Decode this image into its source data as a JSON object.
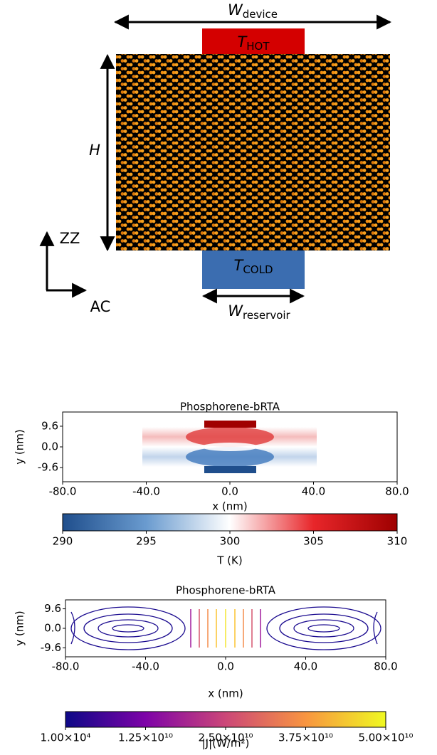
{
  "diagram": {
    "width_label": {
      "main": "W",
      "sub": "device"
    },
    "hot_label": {
      "main": "T",
      "sub": "HOT"
    },
    "cold_label": {
      "main": "T",
      "sub": "COLD"
    },
    "height_label": "H",
    "zz_label": "ZZ",
    "ac_label": "AC",
    "reservoir_label": {
      "main": "W",
      "sub": "reservoir"
    }
  },
  "chart_data": [
    {
      "type": "heatmap",
      "title": "Phosphorene-bRTA",
      "xlabel": "x (nm)",
      "ylabel": "y (nm)",
      "xlim": [
        -80,
        80
      ],
      "ylim": [
        -16.2,
        16.2
      ],
      "xticks": [
        {
          "value": -80,
          "label": "-80.0"
        },
        {
          "value": -40,
          "label": "-40.0"
        },
        {
          "value": 0,
          "label": "0.0"
        },
        {
          "value": 40,
          "label": "40.0"
        },
        {
          "value": 80,
          "label": "80.0"
        }
      ],
      "yticks": [
        -9.6,
        {
          "value": 0,
          "label": "0.0"
        },
        9.6
      ],
      "colorbar": {
        "label": "T (K)",
        "lim": [
          290,
          310
        ],
        "ticks": [
          290,
          295,
          300,
          305,
          310
        ],
        "colors": [
          "#1f4e8c",
          "#6a9bcf",
          "#ffffff",
          "#e8262a",
          "#9e0000"
        ]
      }
    },
    {
      "type": "streamplot",
      "title": "Phosphorene-bRTA",
      "xlabel": "x (nm)",
      "ylabel": "y (nm)",
      "xlim": [
        -80,
        80
      ],
      "ylim": [
        -14,
        14
      ],
      "xticks": [
        {
          "value": -80,
          "label": "-80.0"
        },
        {
          "value": -40,
          "label": "-40.0"
        },
        {
          "value": 0,
          "label": "0.0"
        },
        {
          "value": 40,
          "label": "40.0"
        },
        {
          "value": 80,
          "label": "80.0"
        }
      ],
      "yticks": [
        -9.6,
        {
          "value": 0,
          "label": "0.0"
        },
        9.6
      ],
      "colorbar": {
        "label": "|J|(W/m²)",
        "lim": [
          10000,
          50000000000
        ],
        "ticks": [
          {
            "value": 10000,
            "label": "1.00×10⁴"
          },
          {
            "value": 12500000000,
            "label": "1.25×10¹⁰"
          },
          {
            "value": 25000000000,
            "label": "2.50×10¹⁰"
          },
          {
            "value": 37500000000,
            "label": "3.75×10¹⁰"
          },
          {
            "value": 50000000000,
            "label": "5.00×10¹⁰"
          }
        ],
        "colors": [
          "#0d0887",
          "#7e03a8",
          "#cc4778",
          "#f89540",
          "#f0f921"
        ]
      }
    }
  ]
}
